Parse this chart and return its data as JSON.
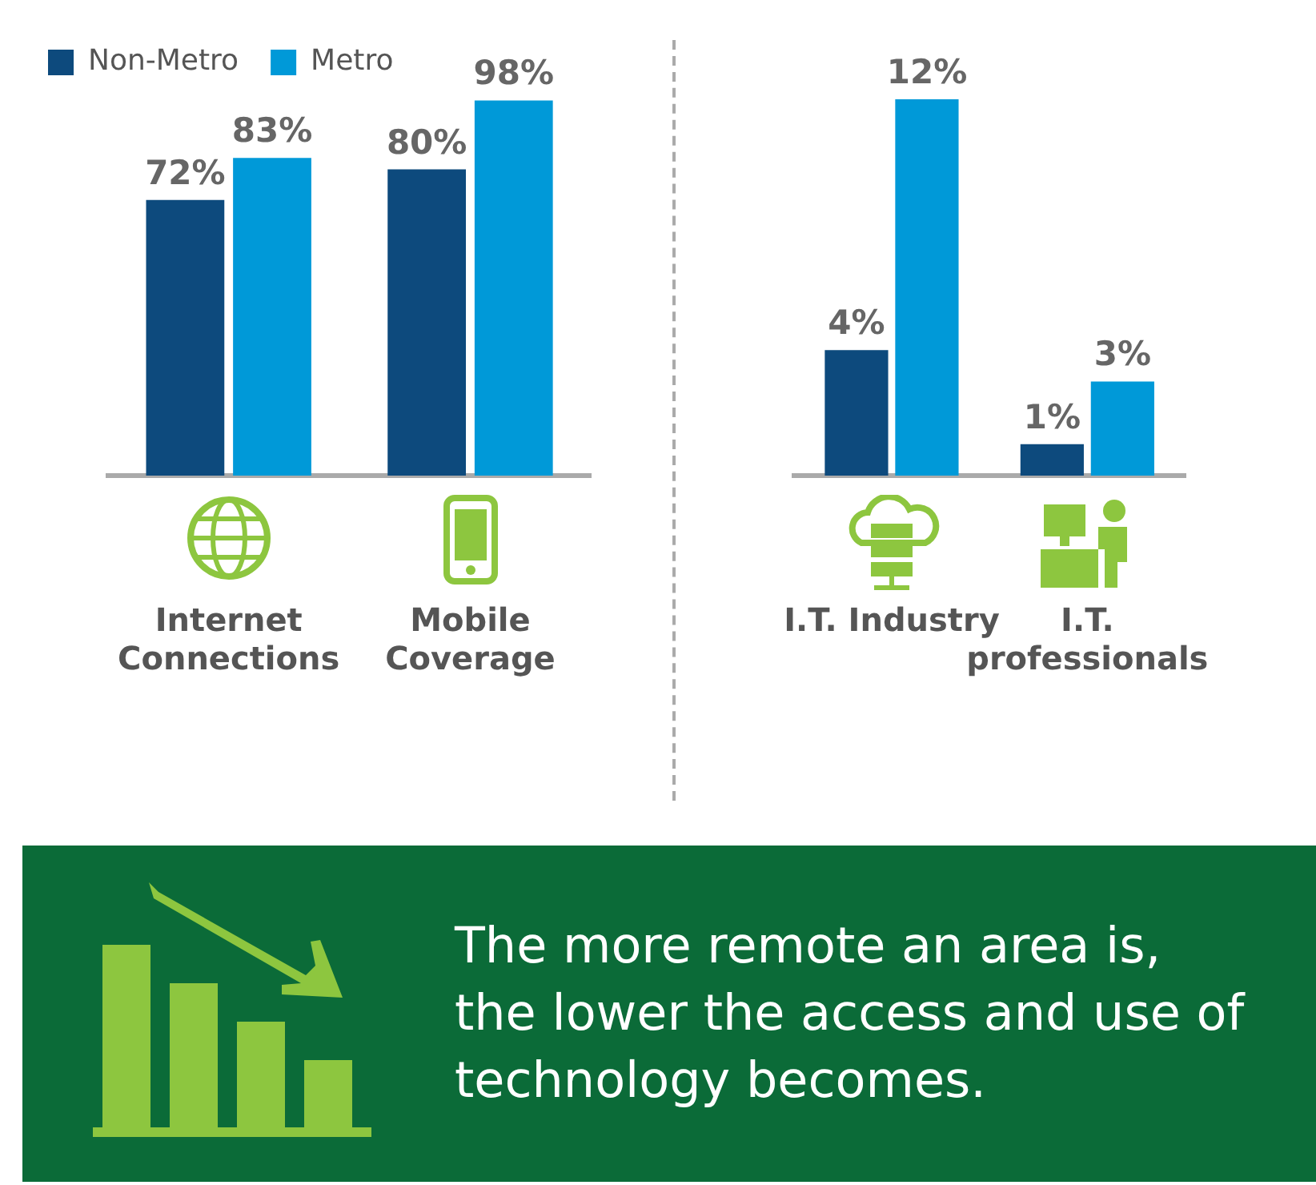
{
  "chart_data": [
    {
      "type": "bar",
      "categories": [
        "Internet Connections",
        "Mobile Coverage"
      ],
      "series": [
        {
          "name": "Non-Metro",
          "color": "#0d4a7d",
          "values": [
            72,
            80
          ],
          "value_labels": [
            "72%",
            "80%"
          ]
        },
        {
          "name": "Metro",
          "color": "#0099d8",
          "values": [
            83,
            98
          ],
          "value_labels": [
            "83%",
            "98%"
          ]
        }
      ],
      "legend": "top left",
      "grid": false,
      "tick_labels": "x"
    },
    {
      "type": "bar",
      "categories": [
        "I.T. Industry",
        "I.T. professionals"
      ],
      "series": [
        {
          "color": "#0d4a7d",
          "values": [
            4,
            1
          ],
          "value_labels": [
            "4%",
            "1%"
          ]
        },
        {
          "color": "#0099d8",
          "values": [
            12,
            3
          ],
          "value_labels": [
            "12%",
            "3%"
          ]
        }
      ],
      "grid": false,
      "tick_labels": "x"
    },
    {
      "type": "other",
      "title": "The more remote an area is, the lower the access and use of technology becomes."
    }
  ]
}
